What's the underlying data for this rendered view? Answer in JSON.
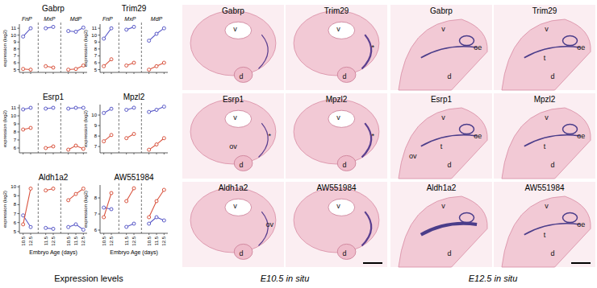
{
  "chart_data": [
    {
      "type": "line",
      "title": "Gabrp",
      "groups": [
        "FnP",
        "MxP",
        "MdP"
      ],
      "categories": [
        "10.5",
        "12.5",
        null,
        "11.5",
        "12.5",
        null,
        "10.5",
        "11.5",
        "12.5"
      ],
      "series": [
        {
          "color": "#5a5ac8",
          "marker": "circle",
          "values": [
            9.8,
            11.0,
            null,
            11.0,
            11.2,
            null,
            10.6,
            10.5,
            11.1
          ]
        },
        {
          "color": "#d9543f",
          "marker": "circle",
          "values": [
            5.1,
            5.0,
            null,
            5.5,
            5.3,
            null,
            5.0,
            5.1,
            5.6
          ]
        }
      ],
      "ylim": [
        4.6,
        11.6
      ],
      "yticks": [
        5,
        6,
        7,
        8,
        9,
        10,
        11
      ],
      "y_label": "expression (log2)",
      "tick_labels": "y"
    },
    {
      "type": "line",
      "title": "Trim29",
      "groups": [
        "FnP",
        "MxP",
        "MdP"
      ],
      "categories": [
        "10.5",
        "12.5",
        null,
        "11.5",
        "12.5",
        null,
        "10.5",
        "11.5",
        "12.5"
      ],
      "series": [
        {
          "color": "#5a5ac8",
          "marker": "circle",
          "values": [
            9.5,
            11.0,
            null,
            10.8,
            11.2,
            null,
            9.2,
            10.2,
            11.0
          ]
        },
        {
          "color": "#d9543f",
          "marker": "circle",
          "values": [
            5.5,
            6.5,
            null,
            5.6,
            6.0,
            null,
            5.0,
            5.5,
            6.0
          ]
        }
      ],
      "ylim": [
        4.6,
        11.6
      ],
      "yticks": [
        5,
        6,
        7,
        8,
        9,
        10,
        11
      ],
      "y_label": "expression (log2)",
      "tick_labels": "y"
    },
    {
      "type": "line",
      "title": "Esrp1",
      "categories": [
        "10.5",
        "12.5",
        null,
        "11.5",
        "12.5",
        null,
        "10.5",
        "11.5",
        "12.5"
      ],
      "series": [
        {
          "color": "#5a5ac8",
          "marker": "circle",
          "values": [
            10.8,
            11.0,
            null,
            10.9,
            11.0,
            null,
            10.9,
            11.0,
            11.0
          ]
        },
        {
          "color": "#d9543f",
          "marker": "circle",
          "values": [
            8.3,
            8.5,
            null,
            6.0,
            6.2,
            null,
            5.8,
            6.3,
            5.9
          ]
        }
      ],
      "ylim": [
        5.4,
        11.4
      ],
      "yticks": [
        6,
        7,
        8,
        9,
        10,
        11
      ],
      "y_label": "expression (log2)",
      "tick_labels": "y"
    },
    {
      "type": "line",
      "title": "Mpzl2",
      "categories": [
        "10.5",
        "12.5",
        null,
        "11.5",
        "12.5",
        null,
        "10.5",
        "11.5",
        "12.5"
      ],
      "series": [
        {
          "color": "#5a5ac8",
          "marker": "circle",
          "values": [
            10.2,
            10.6,
            null,
            10.5,
            10.7,
            null,
            10.3,
            10.5,
            10.8
          ]
        },
        {
          "color": "#d9543f",
          "marker": "circle",
          "values": [
            7.5,
            8.1,
            null,
            7.8,
            8.2,
            null,
            6.7,
            7.2,
            7.8
          ]
        }
      ],
      "ylim": [
        6.4,
        11.0
      ],
      "yticks": [
        7,
        8,
        9,
        10
      ],
      "y_label": "expression (log2)",
      "tick_labels": "y"
    },
    {
      "type": "line",
      "title": "Aldh1a2",
      "x_label": "Embryo Age (days)",
      "categories": [
        "10.5",
        "12.5",
        null,
        "11.5",
        "12.5",
        null,
        "10.5",
        "11.5",
        "12.5"
      ],
      "series": [
        {
          "color": "#5a5ac8",
          "marker": "circle",
          "values": [
            6.8,
            5.5,
            null,
            5.4,
            5.3,
            null,
            5.5,
            5.8,
            5.2
          ]
        },
        {
          "color": "#d9543f",
          "marker": "circle",
          "values": [
            5.8,
            9.8,
            null,
            9.6,
            9.8,
            null,
            8.5,
            9.2,
            9.8
          ]
        }
      ],
      "ylim": [
        4.8,
        10.2
      ],
      "yticks": [
        5,
        6,
        7,
        8,
        9,
        10
      ],
      "y_label": "expression (log2)"
    },
    {
      "type": "line",
      "title": "AW551984",
      "x_label": "Embryo Age (days)",
      "categories": [
        "10.5",
        "12.5",
        null,
        "11.5",
        "12.5",
        null,
        "10.5",
        "11.5",
        "12.5"
      ],
      "series": [
        {
          "color": "#5a5ac8",
          "marker": "circle",
          "values": [
            7.4,
            7.3,
            null,
            6.2,
            6.4,
            null,
            6.4,
            6.8,
            6.6
          ]
        },
        {
          "color": "#d9543f",
          "marker": "circle",
          "values": [
            6.8,
            8.3,
            null,
            7.8,
            8.6,
            null,
            6.8,
            7.8,
            8.5
          ]
        }
      ],
      "ylim": [
        5.8,
        8.8
      ],
      "yticks": [
        6,
        7,
        8
      ],
      "y_label": "expression (log2)"
    }
  ],
  "figure": {
    "captions": [
      "Expression levels",
      "E10.5 in situ",
      "E12.5 in situ"
    ],
    "panels_e10_5": [
      {
        "title": "Gabrp",
        "labels": [
          "v",
          "d"
        ]
      },
      {
        "title": "Trim29",
        "labels": [
          "v",
          "d",
          "*"
        ]
      },
      {
        "title": "Esrp1",
        "labels": [
          "v",
          "d",
          "*",
          "ov"
        ]
      },
      {
        "title": "Mpzl2",
        "labels": [
          "v",
          "d",
          "*"
        ]
      },
      {
        "title": "Aldh1a2",
        "labels": [
          "v",
          "d",
          "ov"
        ]
      },
      {
        "title": "AW551984",
        "labels": [
          "v",
          "d"
        ]
      }
    ],
    "panels_e12_5": [
      {
        "title": "Gabrp",
        "labels": [
          "v",
          "d",
          "oe"
        ]
      },
      {
        "title": "Trim29",
        "labels": [
          "v",
          "d",
          "oe",
          "t"
        ]
      },
      {
        "title": "Esrp1",
        "labels": [
          "v",
          "d",
          "oe",
          "t",
          "ov"
        ]
      },
      {
        "title": "Mpzl2",
        "labels": [
          "v",
          "d",
          "oe",
          "t"
        ]
      },
      {
        "title": "Aldh1a2",
        "labels": [
          "v",
          "d"
        ]
      },
      {
        "title": "AW551984",
        "labels": [
          "v",
          "d",
          "oe",
          "t"
        ]
      }
    ]
  }
}
